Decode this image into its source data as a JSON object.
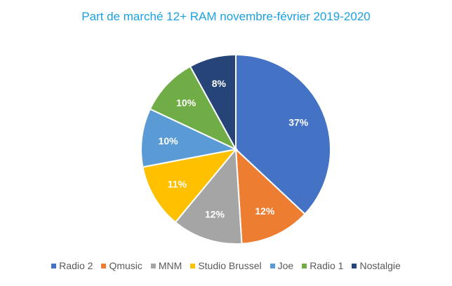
{
  "chart_data": {
    "type": "pie",
    "title": "Part de marché 12+ RAM novembre-février 2019-2020",
    "slices": [
      {
        "label": "Radio 2",
        "value": 37,
        "display": "37%",
        "color": "#4472c4"
      },
      {
        "label": "Qmusic",
        "value": 12,
        "display": "12%",
        "color": "#ed7d31"
      },
      {
        "label": "MNM",
        "value": 12,
        "display": "12%",
        "color": "#a5a5a5"
      },
      {
        "label": "Studio Brussel",
        "value": 11,
        "display": "11%",
        "color": "#ffc000"
      },
      {
        "label": "Joe",
        "value": 10,
        "display": "10%",
        "color": "#5b9bd5"
      },
      {
        "label": "Radio 1",
        "value": 10,
        "display": "10%",
        "color": "#70ad47"
      },
      {
        "label": "Nostalgie",
        "value": 8,
        "display": "8%",
        "color": "#264478"
      }
    ],
    "legend_position": "bottom",
    "label_color": "#ffffff"
  }
}
